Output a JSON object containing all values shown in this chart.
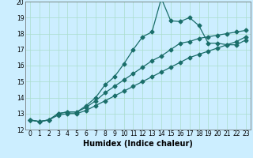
{
  "title": "",
  "xlabel": "Humidex (Indice chaleur)",
  "background_color": "#cceeff",
  "grid_color": "#aaddcc",
  "line_color": "#1a6e6a",
  "xlim": [
    -0.5,
    23.5
  ],
  "ylim": [
    12,
    20
  ],
  "yticks": [
    12,
    13,
    14,
    15,
    16,
    17,
    18,
    19,
    20
  ],
  "xticks": [
    0,
    1,
    2,
    3,
    4,
    5,
    6,
    7,
    8,
    9,
    10,
    11,
    12,
    13,
    14,
    15,
    16,
    17,
    18,
    19,
    20,
    21,
    22,
    23
  ],
  "series1_x": [
    0,
    1,
    2,
    3,
    4,
    5,
    6,
    7,
    8,
    9,
    10,
    11,
    12,
    13,
    14,
    15,
    16,
    17,
    18,
    19,
    20,
    21,
    22,
    23
  ],
  "series1_y": [
    12.6,
    12.5,
    12.6,
    13.0,
    13.1,
    13.1,
    13.5,
    14.0,
    14.8,
    15.3,
    16.1,
    17.0,
    17.8,
    18.1,
    20.2,
    18.8,
    18.75,
    19.0,
    18.5,
    17.4,
    17.4,
    17.3,
    17.3,
    17.6
  ],
  "series2_x": [
    0,
    1,
    2,
    3,
    4,
    5,
    6,
    7,
    8,
    9,
    10,
    11,
    12,
    13,
    14,
    15,
    16,
    17,
    18,
    19,
    20,
    21,
    22,
    23
  ],
  "series2_y": [
    12.6,
    12.5,
    12.6,
    13.0,
    13.1,
    13.1,
    13.4,
    13.8,
    14.3,
    14.7,
    15.1,
    15.5,
    15.9,
    16.3,
    16.6,
    17.0,
    17.4,
    17.5,
    17.7,
    17.8,
    17.9,
    18.0,
    18.1,
    18.2
  ],
  "series3_x": [
    0,
    1,
    2,
    3,
    4,
    5,
    6,
    7,
    8,
    9,
    10,
    11,
    12,
    13,
    14,
    15,
    16,
    17,
    18,
    19,
    20,
    21,
    22,
    23
  ],
  "series3_y": [
    12.6,
    12.5,
    12.6,
    12.9,
    13.0,
    13.0,
    13.2,
    13.5,
    13.8,
    14.1,
    14.4,
    14.7,
    15.0,
    15.3,
    15.6,
    15.9,
    16.2,
    16.5,
    16.7,
    16.9,
    17.1,
    17.3,
    17.5,
    17.8
  ],
  "marker_size": 2.5,
  "line_width": 0.9,
  "font_size_label": 7,
  "font_size_tick": 5.5
}
